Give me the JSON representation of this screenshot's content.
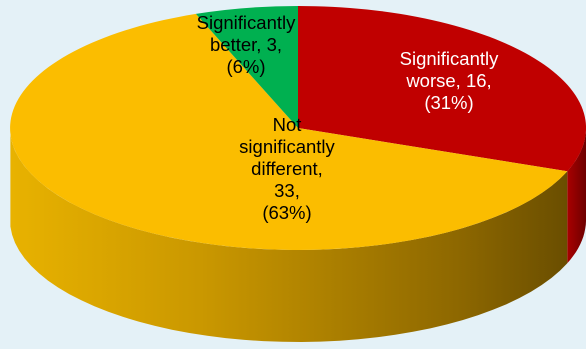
{
  "chart_data": {
    "type": "pie",
    "style": "3d",
    "title": "",
    "slices": [
      {
        "name": "Significantly worse",
        "value": 16,
        "percent": "31%",
        "color": "#c00000",
        "label_color": "#ffffff",
        "label_lines": [
          "Significantly",
          "worse, 16,",
          "(31%)"
        ]
      },
      {
        "name": "Not significantly different",
        "value": 33,
        "percent": "63%",
        "color": "#fbbd00",
        "label_color": "#000000",
        "label_lines": [
          "Not",
          "significantly",
          "different,",
          "33,",
          "(63%)"
        ]
      },
      {
        "name": "Significantly better",
        "value": 3,
        "percent": "6%",
        "color": "#00b050",
        "label_color": "#000000",
        "label_lines": [
          "Significantly",
          "better, 3,",
          "(6%)"
        ]
      }
    ],
    "start_angle_deg": 90,
    "direction": "clockwise"
  }
}
